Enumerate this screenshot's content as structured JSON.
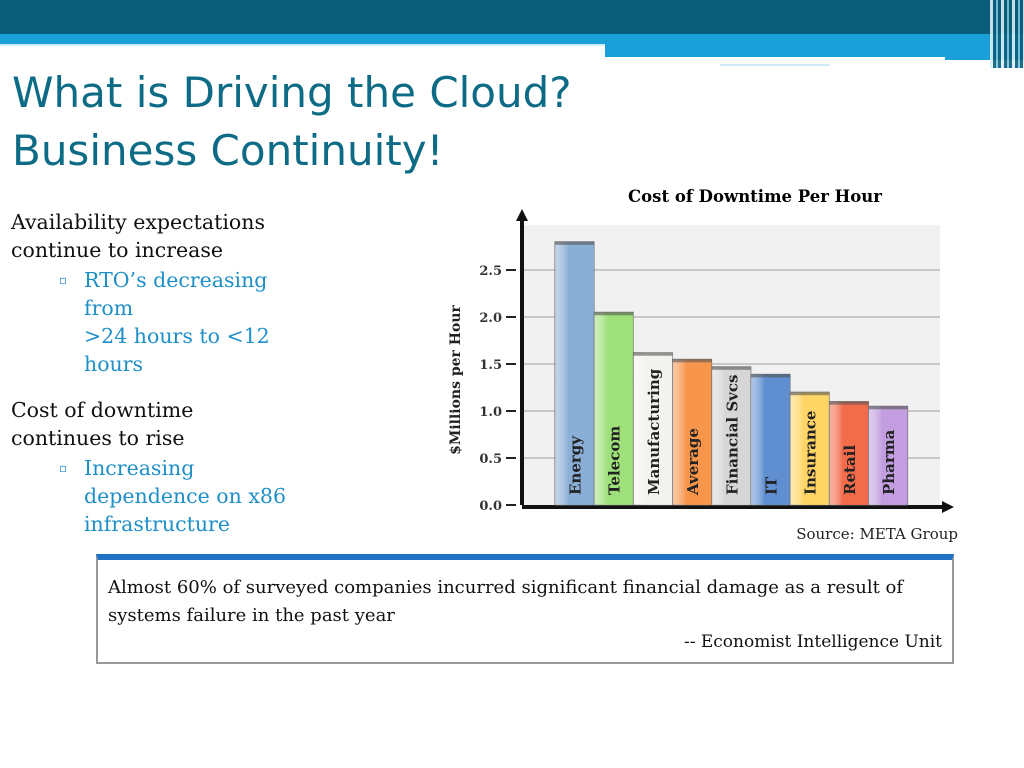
{
  "slide": {
    "title_line1": "What is Driving the Cloud?",
    "title_line2": "Business Continuity!"
  },
  "bullets": {
    "point1": {
      "line1": "Availability expectations",
      "line2": "continue to increase",
      "marker": "▫",
      "sub_line1": "RTO’s decreasing",
      "sub_line2": "from",
      "sub_line3": ">24 hours to <12",
      "sub_line4": "hours"
    },
    "point2": {
      "line1": "Cost of downtime",
      "line2": "continues to rise",
      "marker": "▫",
      "sub_line1": "Increasing",
      "sub_line2": "dependence on x86",
      "sub_line3": "infrastructure"
    }
  },
  "chart_data": {
    "type": "bar",
    "title": "Cost of Downtime Per Hour",
    "ylabel": "$Millions per Hour",
    "xlabel": "",
    "ylim": [
      0,
      2.5
    ],
    "yticks": [
      "0.0",
      "0.5",
      "1.0",
      "1.5",
      "2.0",
      "2.5"
    ],
    "grid": true,
    "categories": [
      {
        "label": "Energy",
        "value": 2.8,
        "color": "#8aaed6"
      },
      {
        "label": "Telecom",
        "value": 2.05,
        "color": "#9ee07a"
      },
      {
        "label": "Manufacturing",
        "value": 1.62,
        "color": "#f2f2ee"
      },
      {
        "label": "Average",
        "value": 1.55,
        "color": "#f7964b"
      },
      {
        "label": "Financial Svcs",
        "value": 1.47,
        "color": "#d6d6d6"
      },
      {
        "label": "IT",
        "value": 1.39,
        "color": "#5f8fd0"
      },
      {
        "label": "Insurance",
        "value": 1.2,
        "color": "#ffd565"
      },
      {
        "label": "Retail",
        "value": 1.1,
        "color": "#f26b4a"
      },
      {
        "label": "Pharma",
        "value": 1.05,
        "color": "#c29ee0"
      }
    ]
  },
  "source": "Source:  META Group",
  "quote": {
    "text": "Almost 60% of surveyed companies incurred significant financial damage as a result of systems failure in the past year",
    "attribution": "-- Economist Intelligence Unit"
  }
}
